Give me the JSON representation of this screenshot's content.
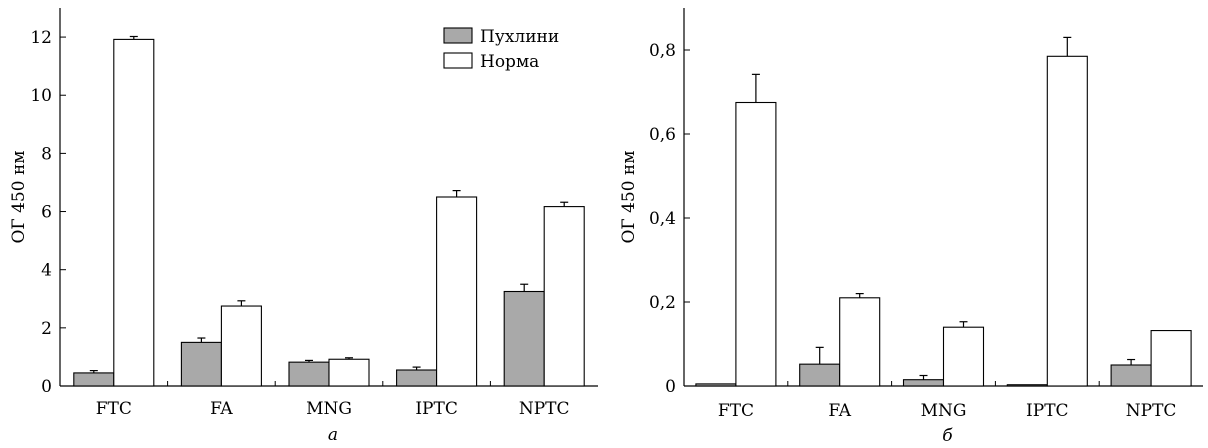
{
  "colors": {
    "tumor": "#a9a9a9",
    "normal": "#ffffff",
    "axis": "#000000"
  },
  "legend": {
    "items": [
      "Пухлини",
      "Норма"
    ]
  },
  "chart_data": [
    {
      "type": "bar",
      "panel_label": "а",
      "ylabel": "ОГ 450 нм",
      "categories": [
        "FTC",
        "FA",
        "MNG",
        "IPTC",
        "NPTC"
      ],
      "ylim": [
        0,
        13
      ],
      "yticks": [
        0,
        2,
        4,
        6,
        8,
        10,
        12
      ],
      "ytick_labels": [
        "0",
        "2",
        "4",
        "6",
        "8",
        "10",
        "12"
      ],
      "legend_position": "top-right",
      "series": [
        {
          "name": "Пухлини",
          "values": [
            0.45,
            1.5,
            0.82,
            0.55,
            3.25
          ],
          "errors": [
            0.08,
            0.15,
            0.06,
            0.1,
            0.25
          ]
        },
        {
          "name": "Норма",
          "values": [
            11.92,
            2.75,
            0.92,
            6.5,
            6.17
          ],
          "errors": [
            0.1,
            0.18,
            0.05,
            0.22,
            0.15
          ]
        }
      ]
    },
    {
      "type": "bar",
      "panel_label": "б",
      "ylabel": "ОГ 450 нм",
      "categories": [
        "FTC",
        "FA",
        "MNG",
        "IPTC",
        "NPTC"
      ],
      "ylim": [
        0,
        0.9
      ],
      "yticks": [
        0,
        0.2,
        0.4,
        0.6,
        0.8
      ],
      "ytick_labels": [
        "0",
        "0,2",
        "0,4",
        "0,6",
        "0,8"
      ],
      "series": [
        {
          "name": "Пухлини",
          "values": [
            0.005,
            0.052,
            0.015,
            0.003,
            0.05
          ],
          "errors": [
            0,
            0.04,
            0.01,
            0,
            0.013
          ]
        },
        {
          "name": "Норма",
          "values": [
            0.675,
            0.21,
            0.14,
            0.785,
            0.132
          ],
          "errors": [
            0.067,
            0.01,
            0.013,
            0.045,
            0
          ]
        }
      ]
    }
  ]
}
